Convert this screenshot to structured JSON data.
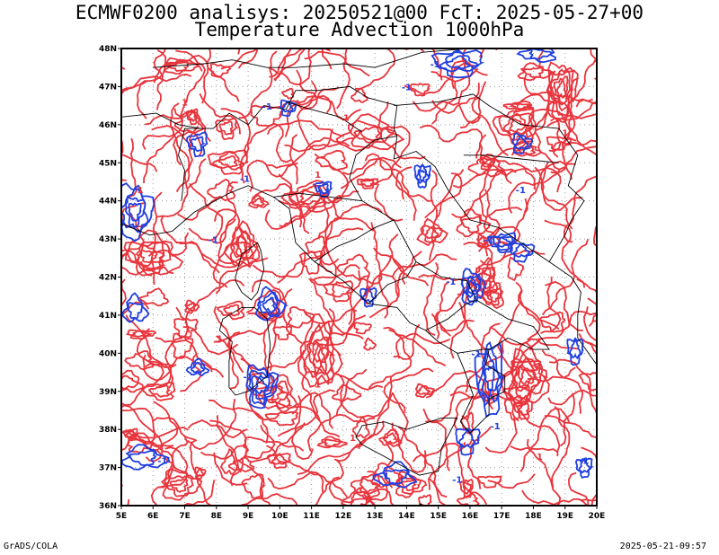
{
  "title_line1": "ECMWF0200 analisys: 20250521@00 FcT: 2025-05-27+00",
  "title_line2": "Temperature Advection 1000hPa",
  "footer_left": "GrADS/COLA",
  "footer_right": "2025-05-21-09:57",
  "lon_labels": [
    "5E",
    "6E",
    "7E",
    "8E",
    "9E",
    "10E",
    "11E",
    "12E",
    "13E",
    "14E",
    "15E",
    "16E",
    "17E",
    "18E",
    "19E",
    "20E"
  ],
  "lat_labels": [
    "36N",
    "37N",
    "38N",
    "39N",
    "40N",
    "41N",
    "42N",
    "43N",
    "44N",
    "45N",
    "46N",
    "47N",
    "48N"
  ],
  "extent": {
    "lon_min": 5,
    "lon_max": 20,
    "lat_min": 36,
    "lat_max": 48
  },
  "colors": {
    "warm_advection": "#e8343c",
    "cold_advection": "#2040e0",
    "coast": "#000000",
    "grid": "#999999"
  },
  "contour_labels": [
    {
      "text": "-1",
      "lon": 14.9,
      "lat": 47.5,
      "sign": "cold"
    },
    {
      "text": "-1",
      "lon": 14.0,
      "lat": 46.9,
      "sign": "cold"
    },
    {
      "text": "-1",
      "lon": 9.6,
      "lat": 46.4,
      "sign": "cold"
    },
    {
      "text": "1",
      "lon": 7.0,
      "lat": 46.5,
      "sign": "warm"
    },
    {
      "text": "1",
      "lon": 12.1,
      "lat": 46.1,
      "sign": "warm"
    },
    {
      "text": "-1",
      "lon": 8.9,
      "lat": 44.5,
      "sign": "cold"
    },
    {
      "text": "1",
      "lon": 11.2,
      "lat": 44.6,
      "sign": "warm"
    },
    {
      "text": "1",
      "lon": 5.6,
      "lat": 44.2,
      "sign": "warm"
    },
    {
      "text": "-1",
      "lon": 7.9,
      "lat": 42.9,
      "sign": "cold"
    },
    {
      "text": "1",
      "lon": 6.3,
      "lat": 42.3,
      "sign": "warm"
    },
    {
      "text": "1",
      "lon": 8.1,
      "lat": 40.3,
      "sign": "warm"
    },
    {
      "text": "1",
      "lon": 12.8,
      "lat": 41.6,
      "sign": "warm"
    },
    {
      "text": "-1",
      "lon": 15.4,
      "lat": 41.8,
      "sign": "cold"
    },
    {
      "text": "-1",
      "lon": 16.6,
      "lat": 42.9,
      "sign": "cold"
    },
    {
      "text": "1",
      "lon": 11.2,
      "lat": 39.1,
      "sign": "warm"
    },
    {
      "text": "-1",
      "lon": 9.0,
      "lat": 39.3,
      "sign": "cold"
    },
    {
      "text": "-1",
      "lon": 16.2,
      "lat": 39.9,
      "sign": "cold"
    },
    {
      "text": "1",
      "lon": 17.6,
      "lat": 38.6,
      "sign": "warm"
    },
    {
      "text": "-1",
      "lon": 16.8,
      "lat": 38.0,
      "sign": "cold"
    },
    {
      "text": "1",
      "lon": 12.3,
      "lat": 37.7,
      "sign": "warm"
    },
    {
      "text": "-1",
      "lon": 6.3,
      "lat": 37.1,
      "sign": "cold"
    },
    {
      "text": "-1",
      "lon": 13.3,
      "lat": 36.7,
      "sign": "cold"
    },
    {
      "text": "-1",
      "lon": 15.6,
      "lat": 36.6,
      "sign": "cold"
    },
    {
      "text": "1",
      "lon": 18.2,
      "lat": 37.2,
      "sign": "warm"
    },
    {
      "text": "-1",
      "lon": 19.6,
      "lat": 37.1,
      "sign": "cold"
    },
    {
      "text": "1",
      "lon": 19.0,
      "lat": 45.7,
      "sign": "warm"
    },
    {
      "text": "-1",
      "lon": 17.6,
      "lat": 44.2,
      "sign": "cold"
    },
    {
      "text": "1",
      "lon": 10.3,
      "lat": 38.6,
      "sign": "warm"
    }
  ]
}
